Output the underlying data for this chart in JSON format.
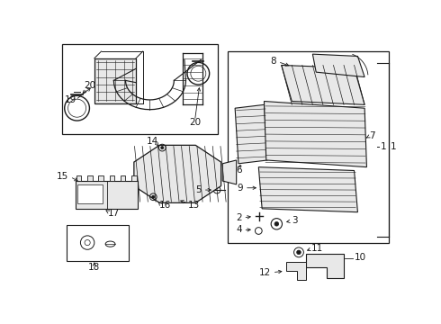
{
  "bg_color": "#ffffff",
  "line_color": "#1a1a1a",
  "fill_color": "#e8e8e8",
  "fig_w": 4.9,
  "fig_h": 3.6,
  "dpi": 100
}
